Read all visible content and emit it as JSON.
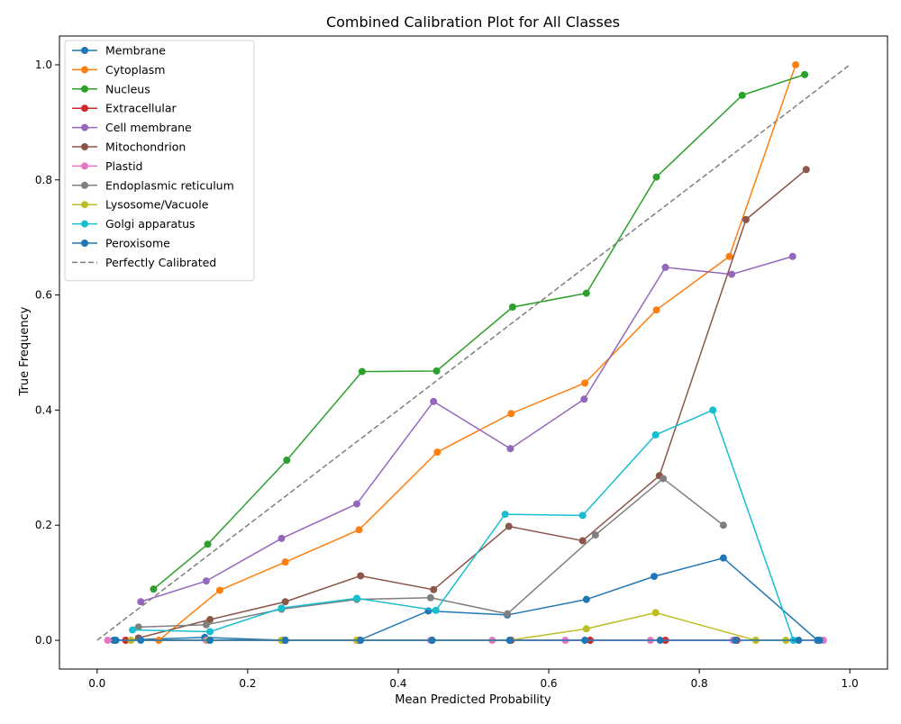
{
  "chart_data": {
    "type": "line",
    "title": "Combined Calibration Plot for All Classes",
    "xlabel": "Mean Predicted Probability",
    "ylabel": "True Frequency",
    "xlim": [
      -0.05,
      1.05
    ],
    "ylim": [
      -0.05,
      1.05
    ],
    "xticks": [
      "0.0",
      "0.2",
      "0.4",
      "0.6",
      "0.8",
      "1.0"
    ],
    "yticks": [
      "0.0",
      "0.2",
      "0.4",
      "0.6",
      "0.8",
      "1.0"
    ],
    "grid": false,
    "legend_position": "top-left",
    "series": [
      {
        "name": "Membrane",
        "color": "#1f77b4",
        "x": [
          0.022,
          0.143,
          0.248,
          0.348,
          0.44,
          0.545,
          0.65,
          0.74,
          0.832,
          0.957
        ],
        "y": [
          0.0,
          0.005,
          0.0,
          0.0,
          0.051,
          0.044,
          0.071,
          0.111,
          0.143,
          0.0
        ]
      },
      {
        "name": "Cytoplasm",
        "color": "#ff7f0e",
        "x": [
          0.082,
          0.163,
          0.25,
          0.348,
          0.452,
          0.55,
          0.648,
          0.743,
          0.84,
          0.928
        ],
        "y": [
          0.0,
          0.087,
          0.136,
          0.192,
          0.327,
          0.394,
          0.447,
          0.574,
          0.667,
          1.0
        ]
      },
      {
        "name": "Nucleus",
        "color": "#2ca02c",
        "x": [
          0.075,
          0.147,
          0.252,
          0.352,
          0.451,
          0.552,
          0.65,
          0.743,
          0.857,
          0.94
        ],
        "y": [
          0.089,
          0.167,
          0.313,
          0.467,
          0.468,
          0.579,
          0.603,
          0.805,
          0.947,
          0.983
        ]
      },
      {
        "name": "Extracellular",
        "color": "#d62728",
        "x": [
          0.038,
          0.148,
          0.25,
          0.347,
          0.445,
          0.55,
          0.655,
          0.755,
          0.85
        ],
        "y": [
          0.0,
          0.0,
          0.0,
          0.0,
          0.0,
          0.0,
          0.0,
          0.0,
          0.0
        ]
      },
      {
        "name": "Cell membrane",
        "color": "#9467bd",
        "x": [
          0.058,
          0.145,
          0.245,
          0.345,
          0.447,
          0.549,
          0.647,
          0.755,
          0.843,
          0.924
        ],
        "y": [
          0.067,
          0.103,
          0.177,
          0.237,
          0.415,
          0.333,
          0.419,
          0.648,
          0.636,
          0.667
        ]
      },
      {
        "name": "Mitochondrion",
        "color": "#8c564b",
        "x": [
          0.055,
          0.15,
          0.25,
          0.35,
          0.447,
          0.547,
          0.645,
          0.747,
          0.862,
          0.942
        ],
        "y": [
          0.004,
          0.036,
          0.067,
          0.112,
          0.088,
          0.198,
          0.173,
          0.286,
          0.731,
          0.818
        ]
      },
      {
        "name": "Plastid",
        "color": "#e377c2",
        "x": [
          0.014,
          0.145,
          0.245,
          0.345,
          0.443,
          0.525,
          0.622,
          0.735,
          0.845,
          0.965
        ],
        "y": [
          0.0,
          0.0,
          0.0,
          0.0,
          0.0,
          0.0,
          0.0,
          0.0,
          0.0,
          0.0
        ]
      },
      {
        "name": "Endoplasmic reticulum",
        "color": "#7f7f7f",
        "x": [
          0.055,
          0.145,
          0.245,
          0.345,
          0.443,
          0.545,
          0.662,
          0.752,
          0.832
        ],
        "y": [
          0.023,
          0.027,
          0.054,
          0.071,
          0.074,
          0.046,
          0.183,
          0.281,
          0.2
        ]
      },
      {
        "name": "Lysosome/Vacuole",
        "color": "#bcbd22",
        "x": [
          0.045,
          0.148,
          0.245,
          0.345,
          0.445,
          0.548,
          0.65,
          0.742,
          0.875,
          0.915
        ],
        "y": [
          0.0,
          0.0,
          0.0,
          0.0,
          0.0,
          0.0,
          0.02,
          0.048,
          0.0,
          0.0
        ]
      },
      {
        "name": "Golgi apparatus",
        "color": "#17becf",
        "x": [
          0.047,
          0.15,
          0.245,
          0.345,
          0.45,
          0.542,
          0.645,
          0.742,
          0.818,
          0.925
        ],
        "y": [
          0.018,
          0.015,
          0.056,
          0.073,
          0.052,
          0.219,
          0.217,
          0.357,
          0.4,
          0.0
        ]
      },
      {
        "name": "Peroxisome",
        "color": "#1f77b4",
        "x": [
          0.025,
          0.058,
          0.15,
          0.25,
          0.35,
          0.445,
          0.548,
          0.648,
          0.748,
          0.848,
          0.932,
          0.96
        ],
        "y": [
          0.0,
          0.0,
          0.0,
          0.0,
          0.0,
          0.0,
          0.0,
          0.0,
          0.0,
          0.0,
          0.0,
          0.0
        ]
      }
    ],
    "reference_line": {
      "name": "Perfectly Calibrated",
      "color": "#7f7f7f",
      "style": "dashed",
      "x": [
        0.0,
        1.0
      ],
      "y": [
        0.0,
        1.0
      ]
    }
  }
}
